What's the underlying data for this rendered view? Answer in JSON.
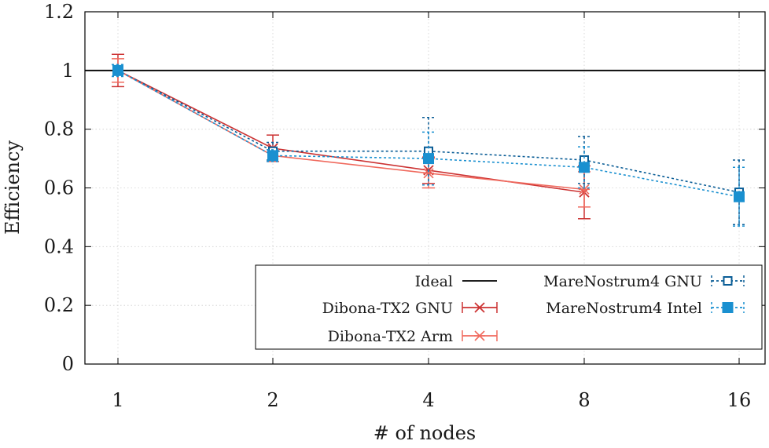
{
  "chart_data": {
    "type": "line",
    "xlabel": "# of nodes",
    "ylabel": "Efficiency",
    "categories": [
      "1",
      "2",
      "4",
      "8",
      "16"
    ],
    "ylim": [
      0,
      1.2
    ],
    "yticks": [
      "0",
      "0.2",
      "0.4",
      "0.6",
      "0.8",
      "1",
      "1.2"
    ],
    "grid": true,
    "legend_position": "bottom-right",
    "series": [
      {
        "name": "Ideal",
        "color": "#000000",
        "style": "solid",
        "marker": "none",
        "values": [
          1,
          1,
          1,
          1,
          1
        ]
      },
      {
        "name": "Dibona-TX2 GNU",
        "color": "#cc3333",
        "style": "solid",
        "marker": "x",
        "values": [
          1.0,
          0.735,
          0.66,
          0.585,
          null
        ],
        "errors": [
          0.055,
          0.045,
          0.045,
          0.09,
          null
        ]
      },
      {
        "name": "Dibona-TX2 Arm",
        "color": "#f06a5e",
        "style": "solid",
        "marker": "asterisk",
        "values": [
          1.0,
          0.71,
          0.65,
          0.595,
          null
        ],
        "errors": [
          0.04,
          0.02,
          0.05,
          0.06,
          null
        ]
      },
      {
        "name": "MareNostrum4 GNU",
        "color": "#0a5d96",
        "style": "dashed",
        "marker": "open-square",
        "values": [
          1.0,
          0.725,
          0.725,
          0.695,
          0.585
        ],
        "errors": [
          0.02,
          0.03,
          0.115,
          0.08,
          0.11
        ]
      },
      {
        "name": "MareNostrum4 Intel",
        "color": "#1a90d0",
        "style": "dashed",
        "marker": "filled-square",
        "values": [
          1.0,
          0.71,
          0.7,
          0.67,
          0.57
        ],
        "errors": [
          0.02,
          0.02,
          0.09,
          0.07,
          0.1
        ]
      }
    ]
  }
}
